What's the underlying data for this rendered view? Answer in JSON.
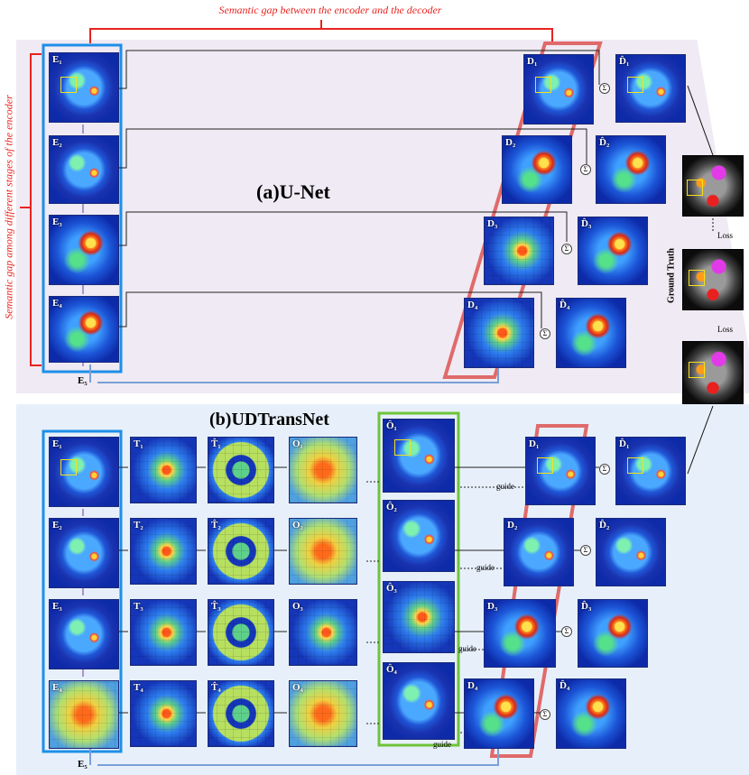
{
  "header": {
    "top_caption": "Semantic gap between the encoder and the decoder",
    "side_caption": "Semantic gap among different stages of the encoder"
  },
  "panel_a": {
    "title": "(a)U-Net",
    "encoder": [
      "E₁",
      "E₂",
      "E₃",
      "E₄"
    ],
    "bottleneck": "E₅",
    "decoder": [
      "D₁",
      "D₂",
      "D₃",
      "D₄"
    ],
    "decoder_out": [
      "D̂₁",
      "D̂₂",
      "D̂₃",
      "D̂₄"
    ],
    "sum": "Σ"
  },
  "ground_truth": {
    "label": "Ground Truth",
    "loss_top": "Loss",
    "loss_bottom": "Loss"
  },
  "panel_b": {
    "title": "(b)UDTransNet",
    "encoder": [
      "E₁",
      "E₂",
      "E₃",
      "E₄"
    ],
    "bottleneck": "E₅",
    "t": [
      "T₁",
      "T₂",
      "T₃",
      "T₄"
    ],
    "t_hat": [
      "T̂₁",
      "T̂₂",
      "T̂₃",
      "T̂₄"
    ],
    "o": [
      "O₁",
      "O₂",
      "O₃",
      "O₄"
    ],
    "o_hat": [
      "Ô₁",
      "Ô₂",
      "Ô₃",
      "Ô₄"
    ],
    "decoder": [
      "D₁",
      "D₂",
      "D₃",
      "D₄"
    ],
    "decoder_out": [
      "D̂₁",
      "D̂₂",
      "D̂₃",
      "D̂₄"
    ],
    "guide": "guide",
    "sum": "Σ"
  }
}
